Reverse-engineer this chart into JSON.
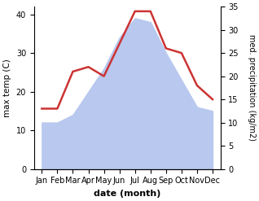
{
  "months": [
    "Jan",
    "Feb",
    "Mar",
    "Apr",
    "May",
    "Jun",
    "Jul",
    "Aug",
    "Sep",
    "Oct",
    "Nov",
    "Dec"
  ],
  "max_temp": [
    12,
    12,
    14,
    20,
    26,
    34,
    39,
    38,
    30,
    23,
    16,
    15
  ],
  "precipitation": [
    13,
    13,
    21,
    22,
    20,
    27,
    34,
    34,
    26,
    25,
    18,
    15
  ],
  "temp_fill_color": "#b8c8ee",
  "precip_color": "#cc3333",
  "left_ylim": [
    0,
    42
  ],
  "right_ylim": [
    0,
    35
  ],
  "left_yticks": [
    0,
    10,
    20,
    30,
    40
  ],
  "right_yticks": [
    0,
    5,
    10,
    15,
    20,
    25,
    30,
    35
  ],
  "xlabel": "date (month)",
  "ylabel_left": "max temp (C)",
  "ylabel_right": "med. precipitation (kg/m2)",
  "bg_color": "#ffffff"
}
